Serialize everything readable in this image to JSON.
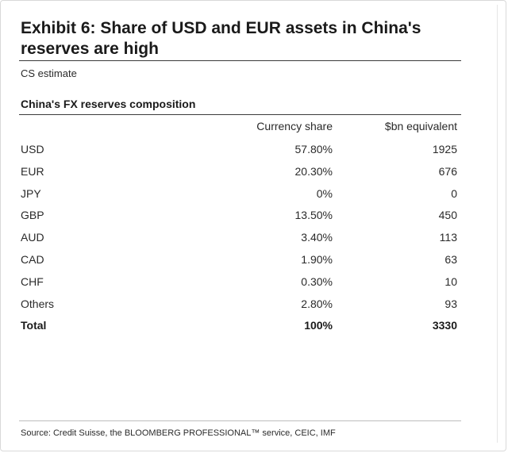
{
  "title": "Exhibit 6: Share of USD and EUR assets in China's reserves are high",
  "subtitle": "CS estimate",
  "source": "Source: Credit Suisse, the BLOOMBERG PROFESSIONAL™ service, CEIC, IMF",
  "chart_data": {
    "type": "table",
    "title": "China's FX reserves composition",
    "columns": [
      "Currency share",
      "$bn equivalent"
    ],
    "rows": [
      {
        "label": "USD",
        "share": "57.80%",
        "bn": "1925"
      },
      {
        "label": "EUR",
        "share": "20.30%",
        "bn": "676"
      },
      {
        "label": "JPY",
        "share": "0%",
        "bn": "0"
      },
      {
        "label": "GBP",
        "share": "13.50%",
        "bn": "450"
      },
      {
        "label": "AUD",
        "share": "3.40%",
        "bn": "113"
      },
      {
        "label": "CAD",
        "share": "1.90%",
        "bn": "63"
      },
      {
        "label": "CHF",
        "share": "0.30%",
        "bn": "10"
      },
      {
        "label": "Others",
        "share": "2.80%",
        "bn": "93"
      }
    ],
    "total": {
      "label": "Total",
      "share": "100%",
      "bn": "3330"
    }
  }
}
